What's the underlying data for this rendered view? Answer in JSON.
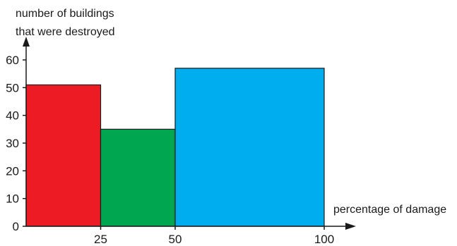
{
  "chart_data": {
    "type": "bar",
    "title": "",
    "ylabel_lines": [
      "number of buildings",
      "that were destroyed"
    ],
    "xlabel": "percentage of damage",
    "bins": [
      {
        "from": 0,
        "to": 25,
        "value": 51,
        "color": "#ed1c24"
      },
      {
        "from": 25,
        "to": 50,
        "value": 35,
        "color": "#00a650"
      },
      {
        "from": 50,
        "to": 100,
        "value": 57,
        "color": "#00aeef"
      }
    ],
    "x_ticks": [
      "25",
      "50",
      "100"
    ],
    "y_ticks": [
      "0",
      "10",
      "20",
      "30",
      "40",
      "50",
      "60"
    ],
    "xlim": [
      0,
      100
    ],
    "ylim": [
      0,
      60
    ],
    "grid": false,
    "legend": "none"
  }
}
